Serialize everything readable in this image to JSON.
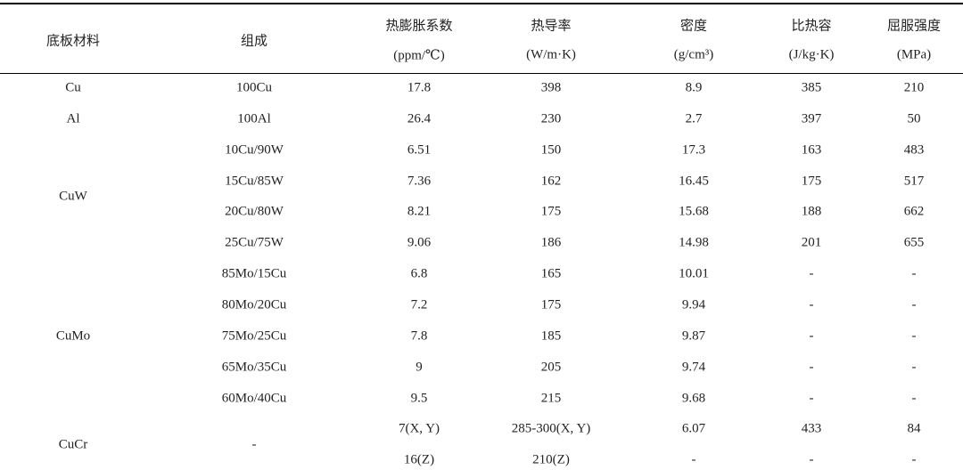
{
  "table": {
    "header": [
      {
        "label": "底板材料"
      },
      {
        "label": "组成"
      },
      {
        "label": "热膨胀系数",
        "unit": "(ppm/℃)"
      },
      {
        "label": "热导率",
        "unit": "(W/m·K)"
      },
      {
        "label": "密度",
        "unit": "(g/cm³)"
      },
      {
        "label": "比热容",
        "unit": "(J/kg·K)"
      },
      {
        "label": "屈服强度",
        "unit": "(MPa)"
      }
    ],
    "groups": [
      {
        "material": "Cu",
        "rows": [
          {
            "composition": "100Cu",
            "cells": [
              "17.8",
              "398",
              "8.9",
              "385",
              "210"
            ]
          }
        ]
      },
      {
        "material": "Al",
        "rows": [
          {
            "composition": "100Al",
            "cells": [
              "26.4",
              "230",
              "2.7",
              "397",
              "50"
            ]
          }
        ]
      },
      {
        "material": "CuW",
        "rows": [
          {
            "composition": "10Cu/90W",
            "cells": [
              "6.51",
              "150",
              "17.3",
              "163",
              "483"
            ]
          },
          {
            "composition": "15Cu/85W",
            "cells": [
              "7.36",
              "162",
              "16.45",
              "175",
              "517"
            ]
          },
          {
            "composition": "20Cu/80W",
            "cells": [
              "8.21",
              "175",
              "15.68",
              "188",
              "662"
            ]
          },
          {
            "composition": "25Cu/75W",
            "cells": [
              "9.06",
              "186",
              "14.98",
              "201",
              "655"
            ]
          }
        ]
      },
      {
        "material": "CuMo",
        "rows": [
          {
            "composition": "85Mo/15Cu",
            "cells": [
              "6.8",
              "165",
              "10.01",
              "-",
              "-"
            ]
          },
          {
            "composition": "80Mo/20Cu",
            "cells": [
              "7.2",
              "175",
              "9.94",
              "-",
              "-"
            ]
          },
          {
            "composition": "75Mo/25Cu",
            "cells": [
              "7.8",
              "185",
              "9.87",
              "-",
              "-"
            ]
          },
          {
            "composition": "65Mo/35Cu",
            "cells": [
              "9",
              "205",
              "9.74",
              "-",
              "-"
            ]
          },
          {
            "composition": "60Mo/40Cu",
            "cells": [
              "9.5",
              "215",
              "9.68",
              "-",
              "-"
            ]
          }
        ]
      },
      {
        "material": "CuCr",
        "composition": "-",
        "rows": [
          {
            "cells": [
              "7(X, Y)",
              "285-300(X, Y)",
              "6.07",
              "433",
              "84"
            ]
          },
          {
            "cells": [
              "16(Z)",
              "210(Z)",
              "-",
              "-",
              "-"
            ]
          }
        ]
      }
    ]
  }
}
